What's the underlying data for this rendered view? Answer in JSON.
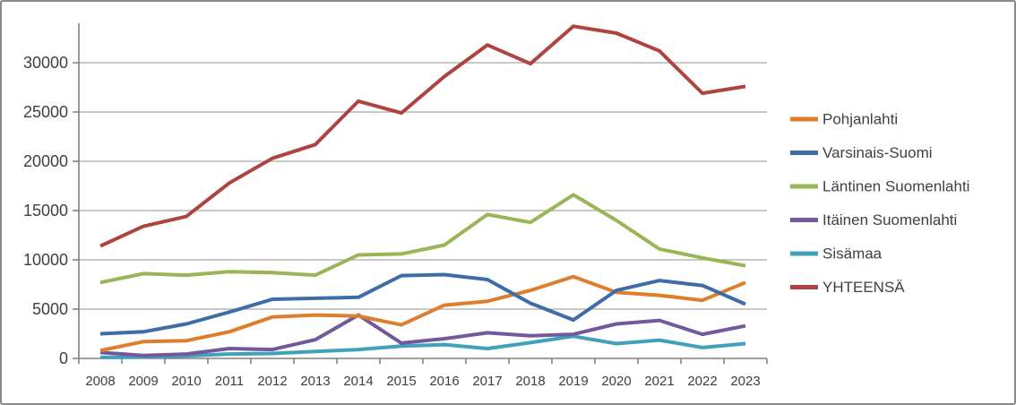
{
  "window": {
    "background": "#ffffff",
    "frame_border_color": "#8a8a8a"
  },
  "chart_data": {
    "type": "line",
    "title": "",
    "xlabel": "",
    "ylabel": "",
    "categories": [
      "2008",
      "2009",
      "2010",
      "2011",
      "2012",
      "2013",
      "2014",
      "2015",
      "2016",
      "2017",
      "2018",
      "2019",
      "2020",
      "2021",
      "2022",
      "2023"
    ],
    "series": [
      {
        "name": "Pohjanlahti",
        "color": "#de7e2d",
        "values": [
          800,
          1700,
          1800,
          2700,
          4200,
          4400,
          4300,
          3400,
          5400,
          5800,
          6900,
          8300,
          6700,
          6400,
          5900,
          7700
        ]
      },
      {
        "name": "Varsinais-Suomi",
        "color": "#3e6ca6",
        "values": [
          2500,
          2700,
          3500,
          4700,
          6000,
          6100,
          6200,
          8400,
          8500,
          8000,
          5600,
          3900,
          6900,
          7900,
          7400,
          5500
        ]
      },
      {
        "name": "Läntinen Suomenlahti",
        "color": "#99b556",
        "values": [
          7700,
          8600,
          8450,
          8800,
          8700,
          8450,
          10500,
          10600,
          11500,
          14600,
          13800,
          16600,
          14000,
          11100,
          10200,
          9400
        ]
      },
      {
        "name": "Itäinen Suomenlahti",
        "color": "#73589b",
        "values": [
          600,
          300,
          450,
          1000,
          900,
          1900,
          4400,
          1550,
          2000,
          2600,
          2300,
          2450,
          3500,
          3850,
          2450,
          3300
        ]
      },
      {
        "name": "Sisämaa",
        "color": "#41a1ba",
        "values": [
          100,
          150,
          250,
          450,
          500,
          700,
          900,
          1250,
          1400,
          1000,
          1600,
          2250,
          1500,
          1850,
          1100,
          1500
        ]
      },
      {
        "name": "YHTEENSÄ",
        "color": "#ae433f",
        "values": [
          11400,
          13400,
          14400,
          17800,
          20300,
          21700,
          26100,
          24900,
          28600,
          31800,
          29900,
          33700,
          33000,
          31200,
          26900,
          27600
        ]
      }
    ],
    "y_axis": {
      "min": 0,
      "max": 34000,
      "tick_interval": 5000,
      "tick_labels": [
        "0",
        "5000",
        "10000",
        "15000",
        "20000",
        "25000",
        "30000"
      ]
    },
    "legend_position": "right",
    "gridlines": true,
    "grid_color": "#a6a6a6",
    "axis_color": "#808080",
    "tick_label_color": "#3f3f3f",
    "legend_text_color": "#404040"
  }
}
